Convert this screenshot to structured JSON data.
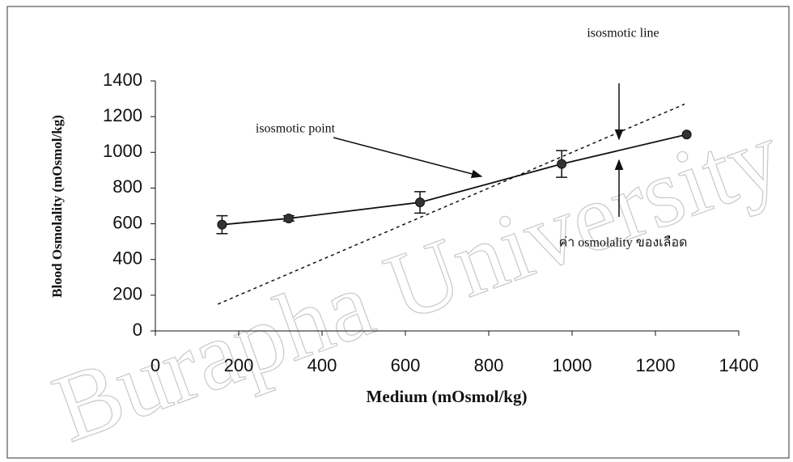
{
  "chart_data": {
    "type": "line",
    "watermark": "Burapha University",
    "xlabel": "Medium (mOsmol/kg)",
    "ylabel": "Blood Osmolality (mOsmol/kg)",
    "xlim": [
      0,
      1400
    ],
    "xticks": [
      0,
      200,
      400,
      600,
      800,
      1000,
      1200,
      1400
    ],
    "ylim": [
      0,
      1400
    ],
    "yticks": [
      0,
      200,
      400,
      600,
      800,
      1000,
      1200,
      1400
    ],
    "series": [
      {
        "color": "#111111",
        "style": "solid",
        "markers": true,
        "x": [
          160,
          320,
          635,
          975,
          1275
        ],
        "values": [
          595,
          630,
          720,
          935,
          1100
        ],
        "errors": [
          50,
          15,
          60,
          75,
          null
        ]
      },
      {
        "color": "#111111",
        "style": "dashed",
        "markers": false,
        "x": [
          150,
          1270
        ],
        "values": [
          150,
          1270
        ]
      }
    ],
    "annotations": [
      "isosmotic line",
      "isosmotic point",
      "ค่า osmolality ของเลือด"
    ]
  }
}
